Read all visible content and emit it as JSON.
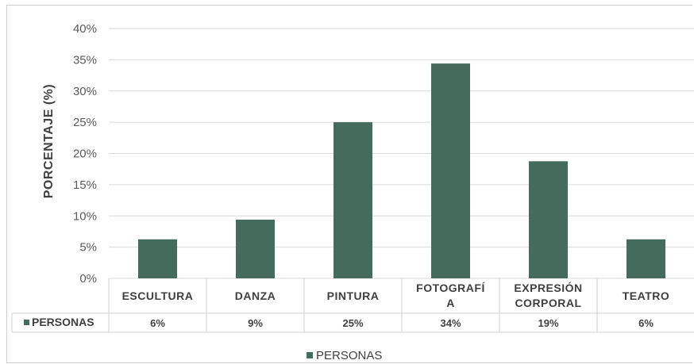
{
  "chart_data": {
    "type": "bar",
    "categories": [
      "ESCULTURA",
      "DANZA",
      "PINTURA",
      "FOTOGRAFÍA",
      "EXPRESIÓN CORPORAL",
      "TEATRO"
    ],
    "category_lines": [
      [
        "ESCULTURA"
      ],
      [
        "DANZA"
      ],
      [
        "PINTURA"
      ],
      [
        "FOTOGRAFÍ",
        "A"
      ],
      [
        "EXPRESIÓN",
        "CORPORAL"
      ],
      [
        "TEATRO"
      ]
    ],
    "series": [
      {
        "name": "PERSONAS",
        "values": [
          6.25,
          9.4,
          25,
          34.4,
          18.75,
          6.25
        ],
        "color": "#456b5d"
      }
    ],
    "data_table": [
      "6%",
      "9%",
      "25%",
      "34%",
      "19%",
      "6%"
    ],
    "ylabel": "PORCENTAJE (%)",
    "ylim": [
      0,
      40
    ],
    "yticks": [
      "0%",
      "5%",
      "10%",
      "15%",
      "20%",
      "25%",
      "30%",
      "35%",
      "40%"
    ],
    "grid": true,
    "legend": {
      "label": "PERSONAS",
      "position": "bottom"
    }
  }
}
